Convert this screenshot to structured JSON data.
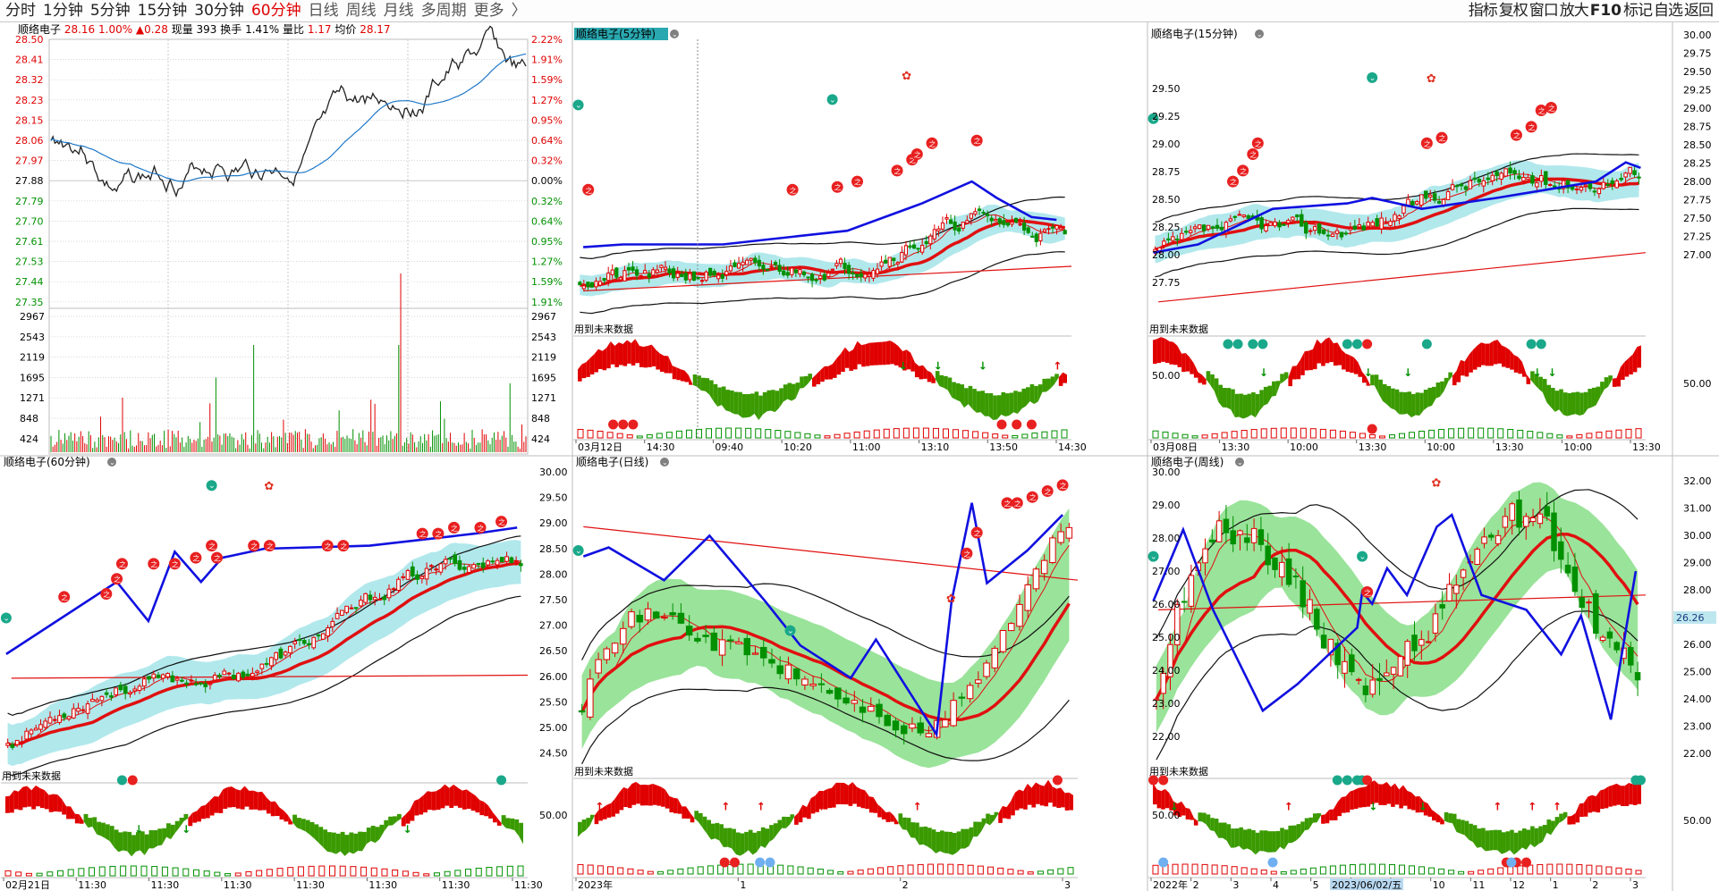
{
  "app": {
    "period_tabs": [
      "分时",
      "1分钟",
      "5分钟",
      "15分钟",
      "30分钟",
      "60分钟",
      "日线",
      "周线",
      "月线",
      "多周期",
      "更多",
      "〉"
    ],
    "active_tab_index": 5,
    "right_tools": [
      "指标",
      "复权",
      "窗口",
      "放大",
      "F10",
      "标记",
      "自选",
      "返回"
    ]
  },
  "colors": {
    "up": "#e00000",
    "down": "#009000",
    "avg_line": "#1f78c8",
    "grid": "#c8c8c8",
    "band_fill": "#a8e6ea",
    "macd_up": "#e00000",
    "macd_down": "#3a9a00",
    "blue_line": "#1010e0",
    "header_bg": "#2aa8b0"
  },
  "panels": {
    "intraday": {
      "name": "顺络电子",
      "price": "28.16",
      "change_pct": "1.00%",
      "change": "▲0.28",
      "vol_label": "现量",
      "vol": "393",
      "turnover_label": "换手",
      "turnover": "1.41%",
      "ratio_label": "量比",
      "ratio": "1.17",
      "avg_label": "均价",
      "avg": "28.17",
      "price_ticks": [
        "28.50",
        "28.41",
        "28.32",
        "28.23",
        "28.15",
        "28.06",
        "27.97",
        "27.88",
        "27.79",
        "27.70",
        "27.61",
        "27.53",
        "27.44",
        "27.35"
      ],
      "pct_ticks": [
        "2.22%",
        "1.91%",
        "1.59%",
        "1.27%",
        "0.95%",
        "0.64%",
        "0.32%",
        "0.00%",
        "0.32%",
        "0.64%",
        "0.95%",
        "1.27%",
        "1.59%",
        "1.91%"
      ],
      "vol_ticks": [
        "2967",
        "2543",
        "2119",
        "1695",
        "1271",
        "848",
        "424"
      ]
    },
    "m5": {
      "title": "顺络电子(5分钟)",
      "note": "用到未来数据",
      "time_ticks": [
        "03月12日",
        "14:30",
        "09:40",
        "10:20",
        "11:00",
        "13:10",
        "13:50",
        "14:30"
      ]
    },
    "m15": {
      "title": "顺络电子(15分钟)",
      "note": "用到未来数据",
      "price_ticks": [
        "29.50",
        "29.25",
        "29.00",
        "28.75",
        "28.50",
        "28.25",
        "28.00",
        "27.75"
      ],
      "macd_tick": "50.00",
      "time_ticks": [
        "03月08日",
        "13:30",
        "10:00",
        "13:30",
        "10:00",
        "13:30",
        "10:00",
        "13:30"
      ]
    },
    "right_axis_top": {
      "ticks": [
        "30.00",
        "29.75",
        "29.50",
        "29.25",
        "29.00",
        "28.75",
        "28.50",
        "28.25",
        "28.00",
        "27.75",
        "27.50",
        "27.25",
        "27.00"
      ],
      "macd_tick": "50.00"
    },
    "m60": {
      "title": "顺络电子(60分钟)",
      "note": "用到未来数据",
      "time_ticks": [
        "02月21日",
        "11:30",
        "11:30",
        "11:30",
        "11:30",
        "11:30",
        "11:30",
        "11:30"
      ]
    },
    "daily": {
      "title": "顺络电子(日线)",
      "note": "用到未来数据",
      "price_ticks": [
        "30.00",
        "29.50",
        "29.00",
        "28.50",
        "28.00",
        "27.50",
        "27.00",
        "26.50",
        "26.00",
        "25.50",
        "25.00",
        "24.50"
      ],
      "macd_tick": "50.00",
      "time_ticks": [
        "2023年",
        "1",
        "2",
        "3"
      ]
    },
    "weekly": {
      "title": "顺络电子(周线)",
      "note": "用到未来数据",
      "price_ticks": [
        "30.00",
        "29.00",
        "28.00",
        "27.00",
        "26.00",
        "25.00",
        "24.00",
        "23.00",
        "22.00"
      ],
      "macd_tick": "50.00",
      "time_ticks": [
        "2022年",
        "2",
        "3",
        "4",
        "5",
        "8",
        "9",
        "10",
        "11",
        "12",
        "1",
        "2",
        "3"
      ],
      "cursor_date": "2023/06/02/五"
    },
    "right_axis_bottom": {
      "ticks": [
        "32.00",
        "31.00",
        "30.00",
        "29.00",
        "28.00",
        "27.00",
        "26.00",
        "25.00",
        "24.00",
        "23.00",
        "22.00"
      ],
      "current_value": "26.26",
      "macd_tick": "50.00"
    }
  }
}
